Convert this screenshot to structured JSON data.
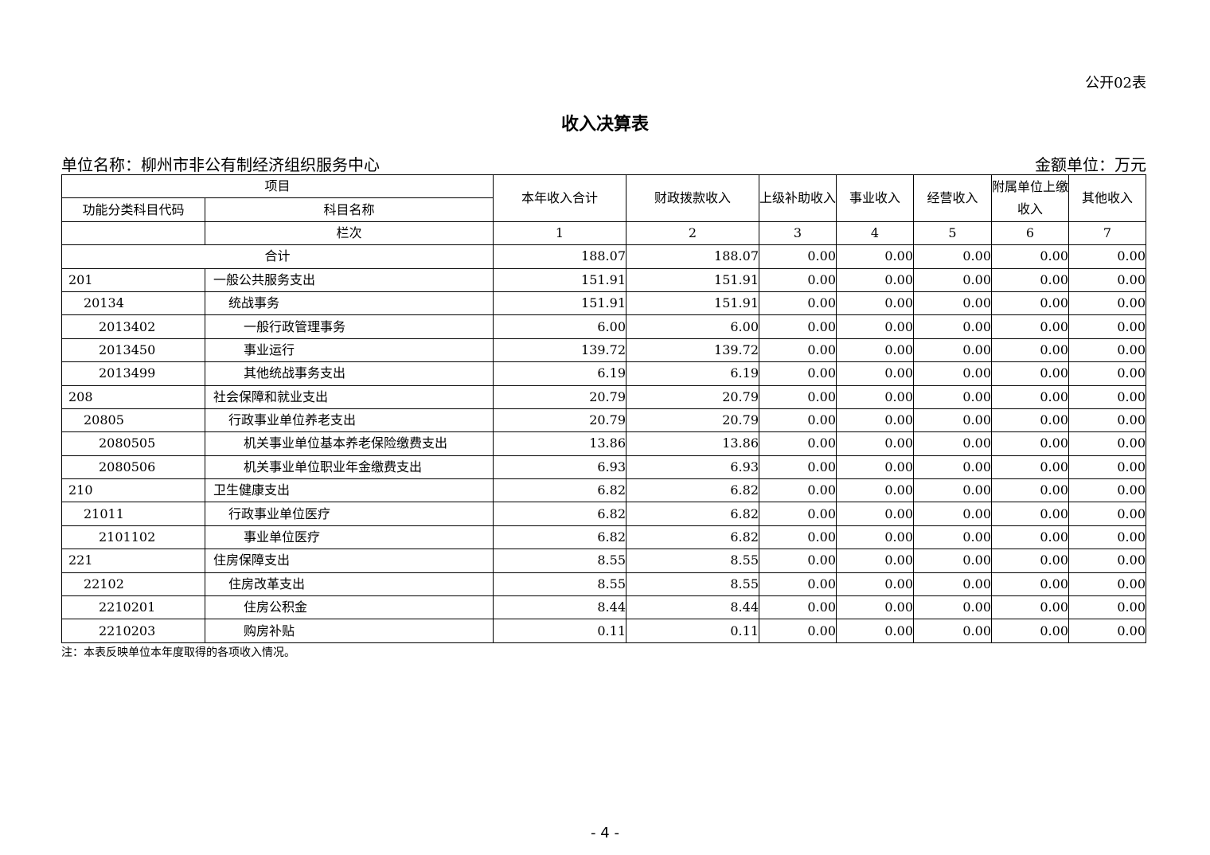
{
  "form_no": "公开02表",
  "title": "收入决算表",
  "unit_name": "单位名称：柳州市非公有制经济组织服务中心",
  "amount_unit": "金额单位：万元",
  "header": {
    "item": "项目",
    "code": "功能分类科目代码",
    "name": "科目名称",
    "column_index_label": "栏次",
    "columns": [
      "本年收入合计",
      "财政拨款收入",
      "上级补助收入",
      "事业收入",
      "经营收入",
      "附属单位上缴收入",
      "其他收入"
    ],
    "column_numbers": [
      "1",
      "2",
      "3",
      "4",
      "5",
      "6",
      "7"
    ]
  },
  "total": {
    "label": "合计",
    "values": [
      "188.07",
      "188.07",
      "0.00",
      "0.00",
      "0.00",
      "0.00",
      "0.00"
    ]
  },
  "rows": [
    {
      "code": "201",
      "name": "一般公共服务支出",
      "level": 0,
      "values": [
        "151.91",
        "151.91",
        "0.00",
        "0.00",
        "0.00",
        "0.00",
        "0.00"
      ]
    },
    {
      "code": "20134",
      "name": "统战事务",
      "level": 1,
      "values": [
        "151.91",
        "151.91",
        "0.00",
        "0.00",
        "0.00",
        "0.00",
        "0.00"
      ]
    },
    {
      "code": "2013402",
      "name": "一般行政管理事务",
      "level": 2,
      "values": [
        "6.00",
        "6.00",
        "0.00",
        "0.00",
        "0.00",
        "0.00",
        "0.00"
      ]
    },
    {
      "code": "2013450",
      "name": "事业运行",
      "level": 2,
      "values": [
        "139.72",
        "139.72",
        "0.00",
        "0.00",
        "0.00",
        "0.00",
        "0.00"
      ]
    },
    {
      "code": "2013499",
      "name": "其他统战事务支出",
      "level": 2,
      "values": [
        "6.19",
        "6.19",
        "0.00",
        "0.00",
        "0.00",
        "0.00",
        "0.00"
      ]
    },
    {
      "code": "208",
      "name": "社会保障和就业支出",
      "level": 0,
      "values": [
        "20.79",
        "20.79",
        "0.00",
        "0.00",
        "0.00",
        "0.00",
        "0.00"
      ]
    },
    {
      "code": "20805",
      "name": "行政事业单位养老支出",
      "level": 1,
      "values": [
        "20.79",
        "20.79",
        "0.00",
        "0.00",
        "0.00",
        "0.00",
        "0.00"
      ]
    },
    {
      "code": "2080505",
      "name": "机关事业单位基本养老保险缴费支出",
      "level": 2,
      "values": [
        "13.86",
        "13.86",
        "0.00",
        "0.00",
        "0.00",
        "0.00",
        "0.00"
      ]
    },
    {
      "code": "2080506",
      "name": "机关事业单位职业年金缴费支出",
      "level": 2,
      "values": [
        "6.93",
        "6.93",
        "0.00",
        "0.00",
        "0.00",
        "0.00",
        "0.00"
      ]
    },
    {
      "code": "210",
      "name": "卫生健康支出",
      "level": 0,
      "values": [
        "6.82",
        "6.82",
        "0.00",
        "0.00",
        "0.00",
        "0.00",
        "0.00"
      ]
    },
    {
      "code": "21011",
      "name": "行政事业单位医疗",
      "level": 1,
      "values": [
        "6.82",
        "6.82",
        "0.00",
        "0.00",
        "0.00",
        "0.00",
        "0.00"
      ]
    },
    {
      "code": "2101102",
      "name": "事业单位医疗",
      "level": 2,
      "values": [
        "6.82",
        "6.82",
        "0.00",
        "0.00",
        "0.00",
        "0.00",
        "0.00"
      ]
    },
    {
      "code": "221",
      "name": "住房保障支出",
      "level": 0,
      "values": [
        "8.55",
        "8.55",
        "0.00",
        "0.00",
        "0.00",
        "0.00",
        "0.00"
      ]
    },
    {
      "code": "22102",
      "name": "住房改革支出",
      "level": 1,
      "values": [
        "8.55",
        "8.55",
        "0.00",
        "0.00",
        "0.00",
        "0.00",
        "0.00"
      ]
    },
    {
      "code": "2210201",
      "name": "住房公积金",
      "level": 2,
      "values": [
        "8.44",
        "8.44",
        "0.00",
        "0.00",
        "0.00",
        "0.00",
        "0.00"
      ]
    },
    {
      "code": "2210203",
      "name": "购房补贴",
      "level": 2,
      "values": [
        "0.11",
        "0.11",
        "0.00",
        "0.00",
        "0.00",
        "0.00",
        "0.00"
      ]
    }
  ],
  "note": "注：本表反映单位本年度取得的各项收入情况。",
  "page_number": "- 4 -"
}
